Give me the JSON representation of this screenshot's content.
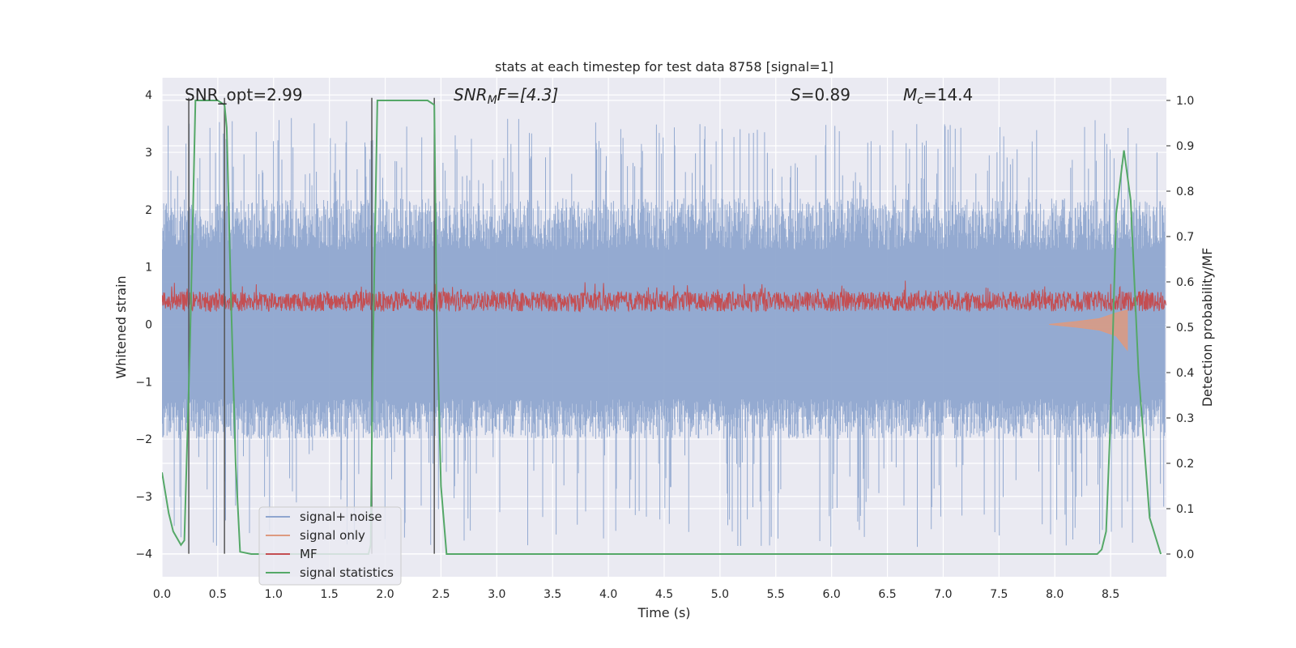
{
  "chart_data": {
    "type": "line",
    "title": "stats at each timestep for test data 8758 [signal=1]",
    "xlabel": "Time (s)",
    "ylabel_left": "Whitened strain",
    "ylabel_right": "Detection probability/MF",
    "xlim": [
      0,
      9.0
    ],
    "ylim_left": [
      -4.4,
      4.3
    ],
    "ylim_right": [
      -0.05,
      1.05
    ],
    "x_ticks": [
      0.0,
      0.5,
      1.0,
      1.5,
      2.0,
      2.5,
      3.0,
      3.5,
      4.0,
      4.5,
      5.0,
      5.5,
      6.0,
      6.5,
      7.0,
      7.5,
      8.0,
      8.5
    ],
    "x_tick_labels": [
      "0.0",
      "0.5",
      "1.0",
      "1.5",
      "2.0",
      "2.5",
      "3.0",
      "3.5",
      "4.0",
      "4.5",
      "5.0",
      "5.5",
      "6.0",
      "6.5",
      "7.0",
      "7.5",
      "8.0",
      "8.5"
    ],
    "y_left_ticks": [
      4,
      3,
      2,
      1,
      0,
      -1,
      -2,
      -3,
      -4
    ],
    "y_left_tick_labels": [
      "4",
      "3",
      "2",
      "1",
      "0",
      "−1",
      "−2",
      "−3",
      "−4"
    ],
    "y_right_ticks": [
      1.0,
      0.9,
      0.8,
      0.7,
      0.6,
      0.5,
      0.4,
      0.3,
      0.2,
      0.1,
      0.0
    ],
    "y_right_tick_labels": [
      "1.0",
      "0.9",
      "0.8",
      "0.7",
      "0.6",
      "0.5",
      "0.4",
      "0.3",
      "0.2",
      "0.1",
      "0.0"
    ],
    "annotations": {
      "snr_opt": "SNR_opt=2.99",
      "snr_mf_sym": "SNR",
      "snr_mf_sub": "M",
      "snr_mf_rest": "F=[4.3]",
      "s_sym": "S",
      "s_rest": "=0.89",
      "mc_sym": "M",
      "mc_sub": "c",
      "mc_rest": "=14.4"
    },
    "vertical_markers": [
      0.24,
      0.56,
      1.88,
      2.44
    ],
    "series": [
      {
        "name": "signal+ noise",
        "color": "#8fa6cf",
        "axis": "left",
        "amplitude_range": [
          -3.9,
          3.6
        ]
      },
      {
        "name": "signal only",
        "color": "#dd9a80",
        "axis": "left",
        "x": [
          7.95,
          8.2,
          8.4,
          8.55,
          8.65
        ],
        "lower": [
          0.0,
          -0.05,
          -0.1,
          -0.2,
          -0.45
        ],
        "upper": [
          0.0,
          0.05,
          0.1,
          0.2,
          0.25
        ]
      },
      {
        "name": "MF",
        "color": "#c44e52",
        "axis": "left",
        "amplitude_range": [
          0.0,
          0.8
        ]
      },
      {
        "name": "signal statistics",
        "color": "#55a868",
        "axis": "right",
        "x": [
          0.0,
          0.06,
          0.1,
          0.17,
          0.2,
          0.25,
          0.3,
          0.4,
          0.5,
          0.56,
          0.58,
          0.62,
          0.66,
          0.7,
          0.8,
          1.0,
          1.5,
          1.85,
          1.87,
          1.89,
          1.93,
          2.0,
          2.2,
          2.38,
          2.44,
          2.46,
          2.5,
          2.55,
          2.6,
          3.0,
          4.0,
          5.0,
          6.0,
          7.0,
          8.0,
          8.38,
          8.42,
          8.46,
          8.5,
          8.55,
          8.62,
          8.68,
          8.75,
          8.85,
          8.95
        ],
        "y": [
          0.18,
          0.09,
          0.05,
          0.02,
          0.03,
          0.45,
          1.0,
          1.0,
          1.0,
          0.99,
          0.94,
          0.55,
          0.2,
          0.005,
          0.0,
          0.0,
          0.0,
          0.0,
          0.02,
          0.45,
          1.0,
          1.0,
          1.0,
          1.0,
          0.99,
          0.55,
          0.15,
          0.0,
          0.0,
          0.0,
          0.0,
          0.0,
          0.0,
          0.0,
          0.0,
          0.0,
          0.01,
          0.05,
          0.3,
          0.75,
          0.89,
          0.78,
          0.4,
          0.08,
          0.0
        ]
      }
    ],
    "legend": {
      "placement": "lower-left",
      "entries": [
        "signal+ noise",
        "signal only",
        "MF",
        "signal statistics"
      ]
    },
    "grid": true
  }
}
